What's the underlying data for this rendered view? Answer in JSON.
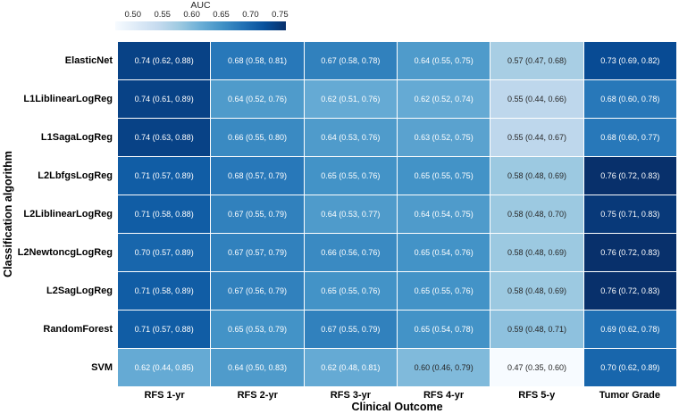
{
  "chart_data": {
    "type": "heatmap",
    "xlabel": "Clinical Outcome",
    "ylabel": "Classification algorithm",
    "colorbar": {
      "label": "AUC",
      "tick_labels": [
        "0.50",
        "0.55",
        "0.60",
        "0.65",
        "0.70",
        "0.75"
      ],
      "tick_values": [
        0.5,
        0.55,
        0.6,
        0.65,
        0.7,
        0.75
      ],
      "vmin": 0.47,
      "vmax": 0.76,
      "colormap_name": "Blues",
      "colormap_stops": [
        "#f7fbff",
        "#deebf7",
        "#c6dbef",
        "#9ecae1",
        "#6baed6",
        "#4292c6",
        "#2171b5",
        "#08519c",
        "#08306b"
      ],
      "dark_text_color": "#262626",
      "light_text_color": "#ffffff"
    },
    "columns": [
      "RFS 1-yr",
      "RFS 2-yr",
      "RFS 3-yr",
      "RFS 4-yr",
      "RFS 5-y",
      "Tumor Grade"
    ],
    "rows": [
      "ElasticNet",
      "L1LiblinearLogReg",
      "L1SagaLogReg",
      "L2LbfgsLogReg",
      "L2LiblinearLogReg",
      "L2NewtoncgLogReg",
      "L2SagLogReg",
      "RandomForest",
      "SVM"
    ],
    "cells": [
      [
        "0.74 (0.62, 0.88)",
        "0.68 (0.58, 0.81)",
        "0.67 (0.58, 0.78)",
        "0.64 (0.55, 0.75)",
        "0.57 (0.47, 0.68)",
        "0.73 (0.69, 0.82)"
      ],
      [
        "0.74 (0.61, 0.89)",
        "0.64 (0.52, 0.76)",
        "0.62 (0.51, 0.76)",
        "0.62 (0.52, 0.74)",
        "0.55 (0.44, 0.66)",
        "0.68 (0.60, 0.78)"
      ],
      [
        "0.74 (0.63, 0.88)",
        "0.66 (0.55, 0.80)",
        "0.64 (0.53, 0.76)",
        "0.63 (0.52, 0.75)",
        "0.55 (0.44, 0.67)",
        "0.68 (0.60, 0.77)"
      ],
      [
        "0.71 (0.57, 0.89)",
        "0.68 (0.57, 0.79)",
        "0.65 (0.55, 0.76)",
        "0.65 (0.55, 0.75)",
        "0.58 (0.48, 0.69)",
        "0.76 (0.72, 0.83)"
      ],
      [
        "0.71 (0.58, 0.88)",
        "0.67 (0.55, 0.79)",
        "0.64 (0.53, 0.77)",
        "0.64 (0.54, 0.75)",
        "0.58 (0.48, 0.70)",
        "0.75 (0.71, 0.83)"
      ],
      [
        "0.70 (0.57, 0.89)",
        "0.67 (0.57, 0.79)",
        "0.66 (0.56, 0.76)",
        "0.65 (0.54, 0.76)",
        "0.58 (0.48, 0.69)",
        "0.76 (0.72, 0.83)"
      ],
      [
        "0.71 (0.58, 0.89)",
        "0.67 (0.56, 0.79)",
        "0.65 (0.55, 0.76)",
        "0.65 (0.55, 0.76)",
        "0.58 (0.48, 0.69)",
        "0.76 (0.72, 0.83)"
      ],
      [
        "0.71 (0.57, 0.88)",
        "0.65 (0.53, 0.79)",
        "0.67 (0.55, 0.79)",
        "0.65 (0.54, 0.78)",
        "0.59 (0.48, 0.71)",
        "0.69 (0.62, 0.78)"
      ],
      [
        "0.62 (0.44, 0.85)",
        "0.64 (0.50, 0.83)",
        "0.62 (0.48, 0.81)",
        "0.60 (0.46, 0.79)",
        "0.47 (0.35, 0.60)",
        "0.70 (0.62, 0.89)"
      ]
    ]
  }
}
